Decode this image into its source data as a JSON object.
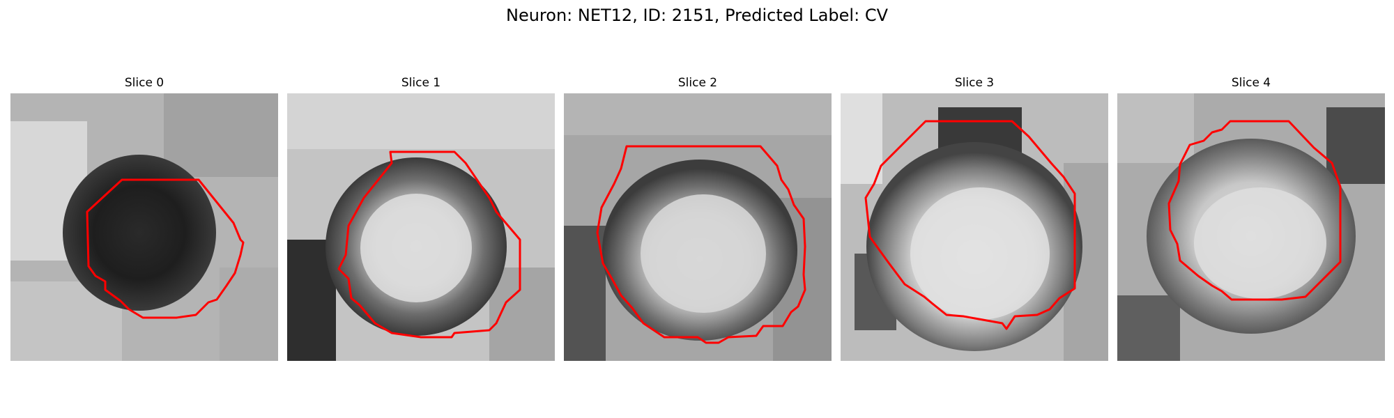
{
  "figure": {
    "title": "Neuron: NET12, ID: 2151, Predicted Label: CV"
  },
  "colors": {
    "contour": "#ff0000",
    "background": "#ffffff"
  },
  "panels": [
    {
      "title": "Slice 0"
    },
    {
      "title": "Slice 1"
    },
    {
      "title": "Slice 2"
    },
    {
      "title": "Slice 3"
    },
    {
      "title": "Slice 4"
    }
  ]
}
